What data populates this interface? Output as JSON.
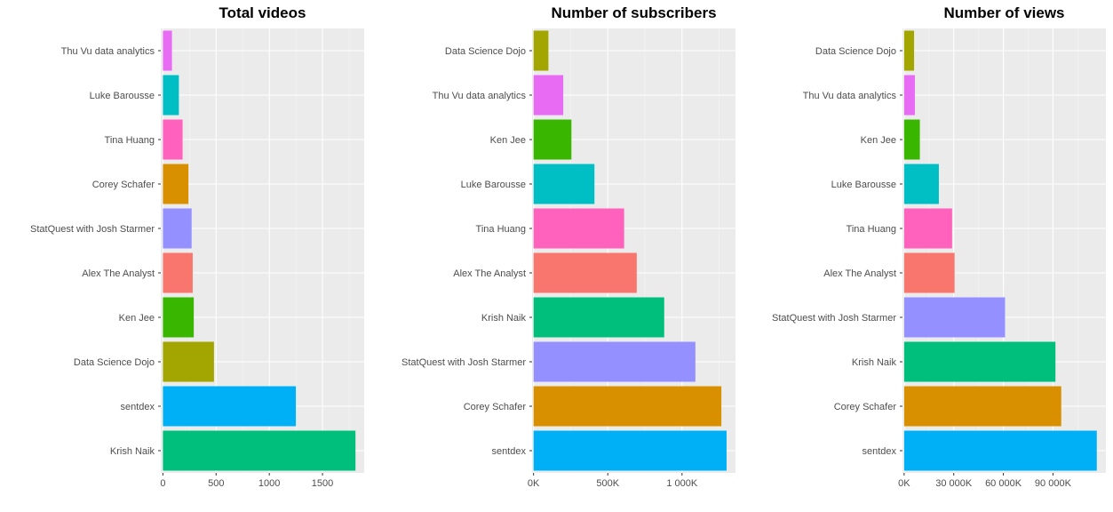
{
  "chart_data": [
    {
      "type": "bar",
      "orientation": "horizontal",
      "title": "Total videos",
      "categories": [
        "Thu Vu data analytics",
        "Luke Barousse",
        "Tina Huang",
        "Corey Schafer",
        "StatQuest with Josh Starmer",
        "Alex The Analyst",
        "Ken Jee",
        "Data Science Dojo",
        "sentdex",
        "Krish Naik"
      ],
      "values": [
        85,
        150,
        185,
        240,
        270,
        280,
        290,
        480,
        1250,
        1810
      ],
      "colors": [
        "#E76BF3",
        "#00BFC4",
        "#FF62BC",
        "#D89000",
        "#9590FF",
        "#F8766D",
        "#39B600",
        "#A3A500",
        "#00B0F6",
        "#00BF7D"
      ],
      "xlim": [
        -20,
        1892
      ],
      "xticks": [
        0,
        500,
        1000,
        1500
      ],
      "xtick_labels": [
        "0",
        "500",
        "1000",
        "1500"
      ],
      "grid": true
    },
    {
      "type": "bar",
      "orientation": "horizontal",
      "title": "Number of subscribers",
      "categories": [
        "Data Science Dojo",
        "Thu Vu data analytics",
        "Ken Jee",
        "Luke Barousse",
        "Tina Huang",
        "Alex The Analyst",
        "Krish Naik",
        "StatQuest with Josh Starmer",
        "Corey Schafer",
        "sentdex"
      ],
      "values": [
        100000,
        200000,
        255000,
        410000,
        610000,
        695000,
        880000,
        1090000,
        1265000,
        1300000
      ],
      "colors": [
        "#A3A500",
        "#E76BF3",
        "#39B600",
        "#00BFC4",
        "#FF62BC",
        "#F8766D",
        "#00BF7D",
        "#9590FF",
        "#D89000",
        "#00B0F6"
      ],
      "xlim": [
        -10000,
        1360000
      ],
      "xticks": [
        0,
        500000,
        1000000
      ],
      "xtick_labels": [
        "0K",
        "500K",
        "1 000K"
      ],
      "grid": true
    },
    {
      "type": "bar",
      "orientation": "horizontal",
      "title": "Number of views",
      "categories": [
        "Data Science Dojo",
        "Thu Vu data analytics",
        "Ken Jee",
        "Luke Barousse",
        "Tina Huang",
        "Alex The Analyst",
        "StatQuest with Josh Starmer",
        "Krish Naik",
        "Corey Schafer",
        "sentdex"
      ],
      "values": [
        6000,
        6500,
        9500,
        21000,
        29000,
        30500,
        61000,
        91500,
        95000,
        116500
      ],
      "colors": [
        "#A3A500",
        "#E76BF3",
        "#39B600",
        "#00BFC4",
        "#FF62BC",
        "#F8766D",
        "#9590FF",
        "#00BF7D",
        "#D89000",
        "#00B0F6"
      ],
      "xlim": [
        -1000,
        122000
      ],
      "xticks": [
        0,
        30000,
        60000,
        90000
      ],
      "xtick_labels": [
        "0K",
        "30 000K",
        "60 000K",
        "90 000K"
      ],
      "grid": true
    }
  ],
  "style": {
    "panel_background": "#EBEBEB",
    "major_grid": "#FFFFFF",
    "text_color": "#4D4D4D",
    "tick_color": "#333333"
  }
}
